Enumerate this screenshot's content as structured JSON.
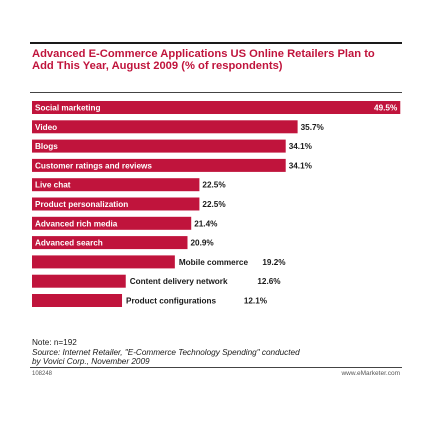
{
  "chart_data": {
    "type": "bar",
    "orientation": "horizontal",
    "title": "Advanced E-Commerce Applications US Online Retailers Plan to Add This Year, August 2009 (% of respondents)",
    "categories": [
      "Social marketing",
      "Video",
      "Blogs",
      "Customer ratings and reviews",
      "Live chat",
      "Product personalization",
      "Advanced rich media",
      "Advanced search",
      "Mobile commerce",
      "Content delivery network",
      "Product configurations"
    ],
    "values": [
      49.5,
      35.7,
      34.1,
      34.1,
      22.5,
      22.5,
      21.4,
      20.9,
      19.2,
      12.6,
      12.1
    ],
    "value_labels": [
      "49.5%",
      "35.7%",
      "34.1%",
      "34.1%",
      "22.5%",
      "22.5%",
      "21.4%",
      "20.9%",
      "19.2%",
      "12.6%",
      "12.1%"
    ],
    "xlim": [
      0,
      50
    ],
    "grid": false,
    "bar_color": "#c0143c"
  },
  "note": {
    "line1": "Note: n=192",
    "line2": "Source: Internet Retailer, \"E-Commerce Technology Spending\" conducted",
    "line3": "by Vovici Corp., November 2009"
  },
  "footer": {
    "code": "108248",
    "site": "www.eMarketer.com"
  }
}
